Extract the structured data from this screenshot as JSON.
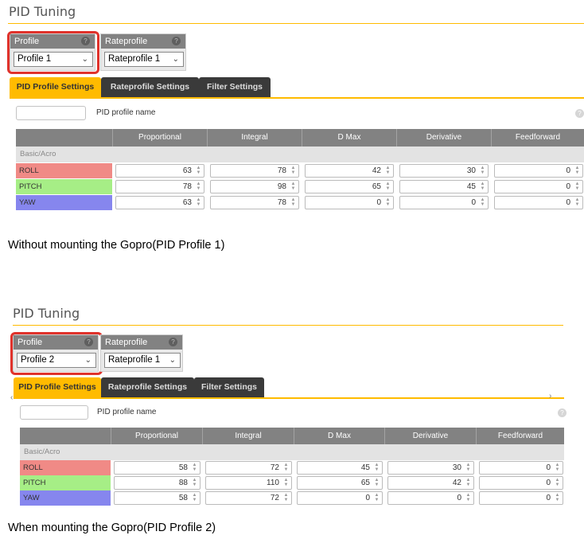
{
  "panels": [
    {
      "title": "PID Tuning",
      "profile": {
        "label": "Profile",
        "value": "Profile 1"
      },
      "rateprofile": {
        "label": "Rateprofile",
        "value": "Rateprofile 1"
      },
      "tabs": [
        "PID Profile Settings",
        "Rateprofile Settings",
        "Filter Settings"
      ],
      "name_label": "PID profile name",
      "columns": [
        "Proportional",
        "Integral",
        "D Max",
        "Derivative",
        "Feedforward"
      ],
      "group": "Basic/Acro",
      "rows": [
        {
          "axis": "ROLL",
          "values": [
            "63",
            "78",
            "42",
            "30",
            "0"
          ]
        },
        {
          "axis": "PITCH",
          "values": [
            "78",
            "98",
            "65",
            "45",
            "0"
          ]
        },
        {
          "axis": "YAW",
          "values": [
            "63",
            "78",
            "0",
            "0",
            "0"
          ]
        }
      ],
      "caption": "Without mounting the Gopro(PID Profile 1)"
    },
    {
      "title": "PID Tuning",
      "profile": {
        "label": "Profile",
        "value": "Profile 2"
      },
      "rateprofile": {
        "label": "Rateprofile",
        "value": "Rateprofile 1"
      },
      "tabs": [
        "PID Profile Settings",
        "Rateprofile Settings",
        "Filter Settings"
      ],
      "name_label": "PID profile name",
      "columns": [
        "Proportional",
        "Integral",
        "D Max",
        "Derivative",
        "Feedforward"
      ],
      "group": "Basic/Acro",
      "rows": [
        {
          "axis": "ROLL",
          "values": [
            "58",
            "72",
            "45",
            "30",
            "0"
          ]
        },
        {
          "axis": "PITCH",
          "values": [
            "88",
            "110",
            "65",
            "42",
            "0"
          ]
        },
        {
          "axis": "YAW",
          "values": [
            "58",
            "72",
            "0",
            "0",
            "0"
          ]
        }
      ],
      "caption": "When mounting the Gopro(PID Profile 2)"
    }
  ],
  "colors": {
    "accent": "#ffbb00",
    "highlight": "#e0322b",
    "roll": "#f08a86",
    "pitch": "#a6ee86",
    "yaw": "#8686ee"
  },
  "icons": {
    "help": "question-mark-icon",
    "dropdown": "chevron-down-icon"
  }
}
